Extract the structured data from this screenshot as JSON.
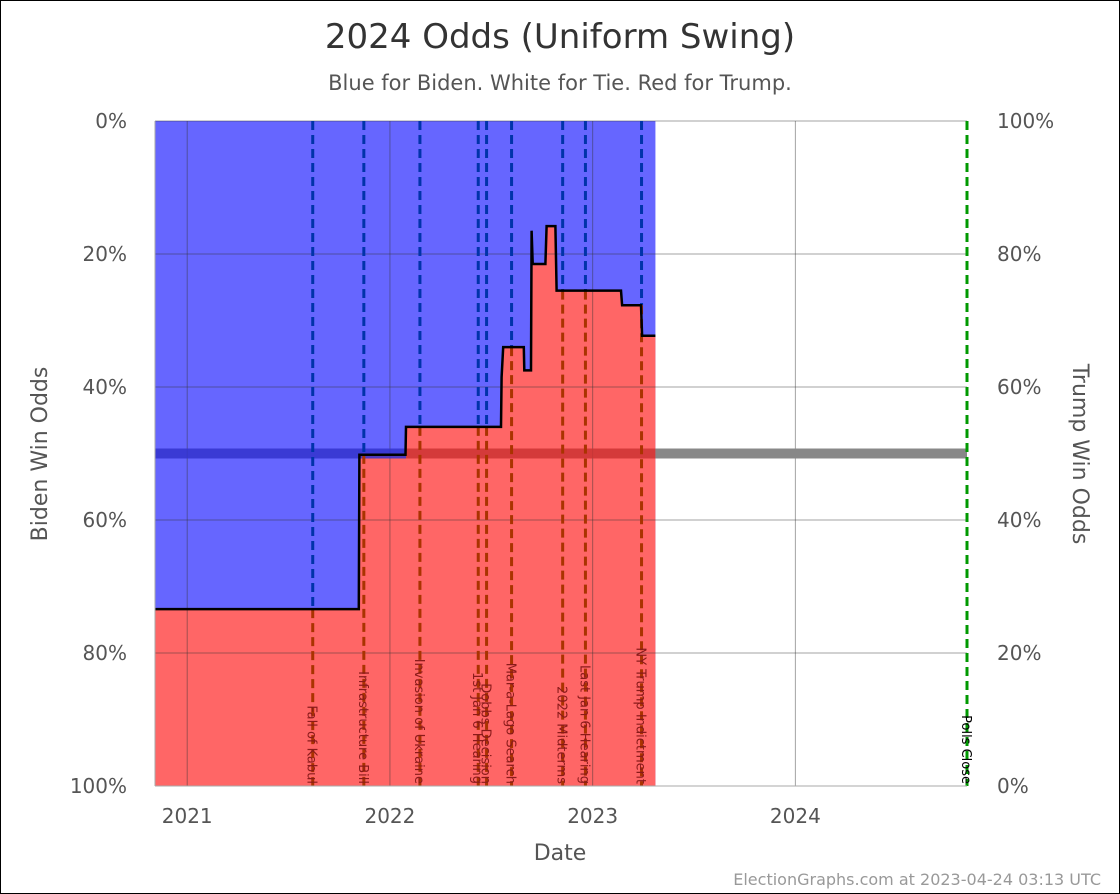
{
  "chart_data": {
    "type": "area",
    "title": "2024 Odds (Uniform Swing)",
    "subtitle": "Blue for Biden. White for Tie. Red for Trump.",
    "xlabel": "Date",
    "ylabel_left": "Biden Win Odds",
    "ylabel_right": "Trump Win Odds",
    "x_range": [
      "2020-11-04",
      "2024-11-05"
    ],
    "y_range_pct": [
      0,
      100
    ],
    "x_ticks": [
      {
        "date": "2021-01-01",
        "label": "2021"
      },
      {
        "date": "2022-01-01",
        "label": "2022"
      },
      {
        "date": "2023-01-01",
        "label": "2023"
      },
      {
        "date": "2024-01-01",
        "label": "2024"
      }
    ],
    "y_ticks_left": [
      "0%",
      "20%",
      "40%",
      "60%",
      "80%",
      "100%"
    ],
    "y_ticks_right": [
      "100%",
      "80%",
      "60%",
      "40%",
      "20%",
      "0%"
    ],
    "grid": true,
    "colors": {
      "biden": "#6666ff",
      "trump": "#ff6666",
      "tie": "#ffffff",
      "line": "#000000",
      "midline_biden": "#3333cc",
      "midline_trump": "#cc3333",
      "midline_future": "#888888",
      "event_line_over_biden": "#0033aa",
      "event_line_over_trump": "#aa3300",
      "polls_close_line": "#009900"
    },
    "series": [
      {
        "name": "Trump Win Odds",
        "points": [
          {
            "date": "2020-11-04",
            "value": 26.6
          },
          {
            "date": "2021-11-06",
            "value": 26.6
          },
          {
            "date": "2021-11-07",
            "value": 49.8
          },
          {
            "date": "2022-01-29",
            "value": 49.8
          },
          {
            "date": "2022-01-30",
            "value": 54.0
          },
          {
            "date": "2022-07-20",
            "value": 54.0
          },
          {
            "date": "2022-07-21",
            "value": 61.5
          },
          {
            "date": "2022-07-24",
            "value": 66.0
          },
          {
            "date": "2022-08-30",
            "value": 66.0
          },
          {
            "date": "2022-08-31",
            "value": 62.5
          },
          {
            "date": "2022-09-12",
            "value": 62.5
          },
          {
            "date": "2022-09-13",
            "value": 83.5
          },
          {
            "date": "2022-09-15",
            "value": 78.5
          },
          {
            "date": "2022-10-08",
            "value": 78.5
          },
          {
            "date": "2022-10-10",
            "value": 84.2
          },
          {
            "date": "2022-10-26",
            "value": 84.2
          },
          {
            "date": "2022-10-28",
            "value": 74.5
          },
          {
            "date": "2023-02-21",
            "value": 74.5
          },
          {
            "date": "2023-02-23",
            "value": 72.3
          },
          {
            "date": "2023-03-29",
            "value": 72.3
          },
          {
            "date": "2023-03-31",
            "value": 67.7
          },
          {
            "date": "2023-04-24",
            "value": 67.7
          }
        ]
      }
    ],
    "events": [
      {
        "date": "2021-08-15",
        "label": "Fall of Kabul"
      },
      {
        "date": "2021-11-15",
        "label": "Infrastructure Bill"
      },
      {
        "date": "2022-02-24",
        "label": "Invasion of Ukraine"
      },
      {
        "date": "2022-06-09",
        "label": "1st Jan 6 Hearing"
      },
      {
        "date": "2022-06-24",
        "label": "Dobbs Decision"
      },
      {
        "date": "2022-08-08",
        "label": "Mar-a-Lago Search"
      },
      {
        "date": "2022-11-08",
        "label": "2022 Midterms"
      },
      {
        "date": "2022-12-19",
        "label": "Last Jan 6 Hearing"
      },
      {
        "date": "2023-03-30",
        "label": "NY Trump Indictment"
      }
    ],
    "polls_close": {
      "date": "2024-11-05",
      "label": "Polls Close"
    }
  },
  "footer": "ElectionGraphs.com at 2023-04-24 03:13 UTC"
}
